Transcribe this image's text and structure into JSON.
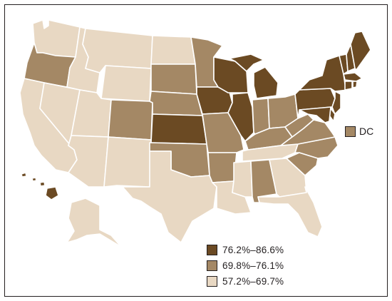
{
  "map": {
    "type": "choropleth",
    "region": "United States",
    "colors": {
      "high": "#6b4a23",
      "mid": "#a48865",
      "low": "#e8d8c3"
    },
    "legend": [
      {
        "label": "76.2%–86.6%",
        "category": "high"
      },
      {
        "label": "69.8%–76.1%",
        "category": "mid"
      },
      {
        "label": "57.2%–69.7%",
        "category": "low"
      }
    ],
    "dc": {
      "label": "DC",
      "category": "mid"
    },
    "states": {
      "WA": "low",
      "OR": "mid",
      "CA": "low",
      "NV": "low",
      "ID": "low",
      "MT": "low",
      "WY": "low",
      "UT": "low",
      "AZ": "low",
      "CO": "mid",
      "NM": "low",
      "ND": "low",
      "SD": "mid",
      "NE": "mid",
      "KS": "high",
      "OK": "mid",
      "TX": "low",
      "MN": "mid",
      "IA": "high",
      "MO": "mid",
      "AR": "mid",
      "LA": "low",
      "WI": "high",
      "IL": "high",
      "MI": "high",
      "IN": "mid",
      "OH": "mid",
      "KY": "mid",
      "TN": "low",
      "MS": "low",
      "AL": "mid",
      "GA": "low",
      "FL": "low",
      "SC": "mid",
      "NC": "mid",
      "VA": "mid",
      "WV": "mid",
      "PA": "high",
      "NY": "high",
      "VT": "high",
      "NH": "high",
      "ME": "high",
      "MA": "high",
      "RI": "high",
      "CT": "high",
      "NJ": "high",
      "DE": "high",
      "MD": "high",
      "AK": "low",
      "HI": "high"
    }
  }
}
